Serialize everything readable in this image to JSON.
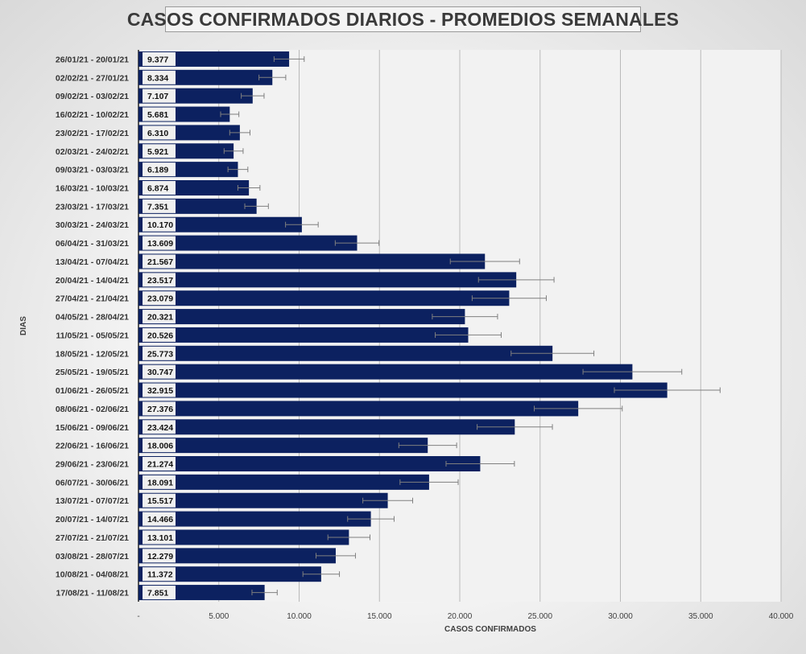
{
  "chart_data": {
    "type": "bar",
    "orientation": "horizontal",
    "title": "CASOS CONFIRMADOS DIARIOS - PROMEDIOS SEMANALES",
    "xlabel": "CASOS CONFIRMADOS",
    "ylabel": "DIAS",
    "xlim": [
      0,
      40000
    ],
    "x_ticks": [
      "-",
      "5.000",
      "10.000",
      "15.000",
      "20.000",
      "25.000",
      "30.000",
      "35.000",
      "40.000"
    ],
    "grid": "vertical",
    "error_bars": true,
    "bar_color": "#0c2160",
    "categories": [
      "26/01/21 - 20/01/21",
      "02/02/21 - 27/01/21",
      "09/02/21 - 03/02/21",
      "16/02/21 - 10/02/21",
      "23/02/21 - 17/02/21",
      "02/03/21 - 24/02/21",
      "09/03/21 - 03/03/21",
      "16/03/21 - 10/03/21",
      "23/03/21 - 17/03/21",
      "30/03/21 - 24/03/21",
      "06/04/21 - 31/03/21",
      "13/04/21 - 07/04/21",
      "20/04/21 - 14/04/21",
      "27/04/21 - 21/04/21",
      "04/05/21 - 28/04/21",
      "11/05/21 - 05/05/21",
      "18/05/21 - 12/05/21",
      "25/05/21 - 19/05/21",
      "01/06/21 - 26/05/21",
      "08/06/21 - 02/06/21",
      "15/06/21 - 09/06/21",
      "22/06/21 - 16/06/21",
      "29/06/21 - 23/06/21",
      "06/07/21 - 30/06/21",
      "13/07/21 - 07/07/21",
      "20/07/21 - 14/07/21",
      "27/07/21 - 21/07/21",
      "03/08/21 - 28/07/21",
      "10/08/21 - 04/08/21",
      "17/08/21 - 11/08/21"
    ],
    "values": [
      9377,
      8334,
      7107,
      5681,
      6310,
      5921,
      6189,
      6874,
      7351,
      10170,
      13609,
      21567,
      23517,
      23079,
      20321,
      20526,
      25773,
      30747,
      32915,
      27376,
      23424,
      18006,
      21274,
      18091,
      15517,
      14466,
      13101,
      12279,
      11372,
      7851
    ],
    "value_labels": [
      "9.377",
      "8.334",
      "7.107",
      "5.681",
      "6.310",
      "5.921",
      "6.189",
      "6.874",
      "7.351",
      "10.170",
      "13.609",
      "21.567",
      "23.517",
      "23.079",
      "20.321",
      "20.526",
      "25.773",
      "30.747",
      "32.915",
      "27.376",
      "23.424",
      "18.006",
      "21.274",
      "18.091",
      "15.517",
      "14.466",
      "13.101",
      "12.279",
      "11.372",
      "7.851"
    ],
    "error_fraction": 0.1
  }
}
